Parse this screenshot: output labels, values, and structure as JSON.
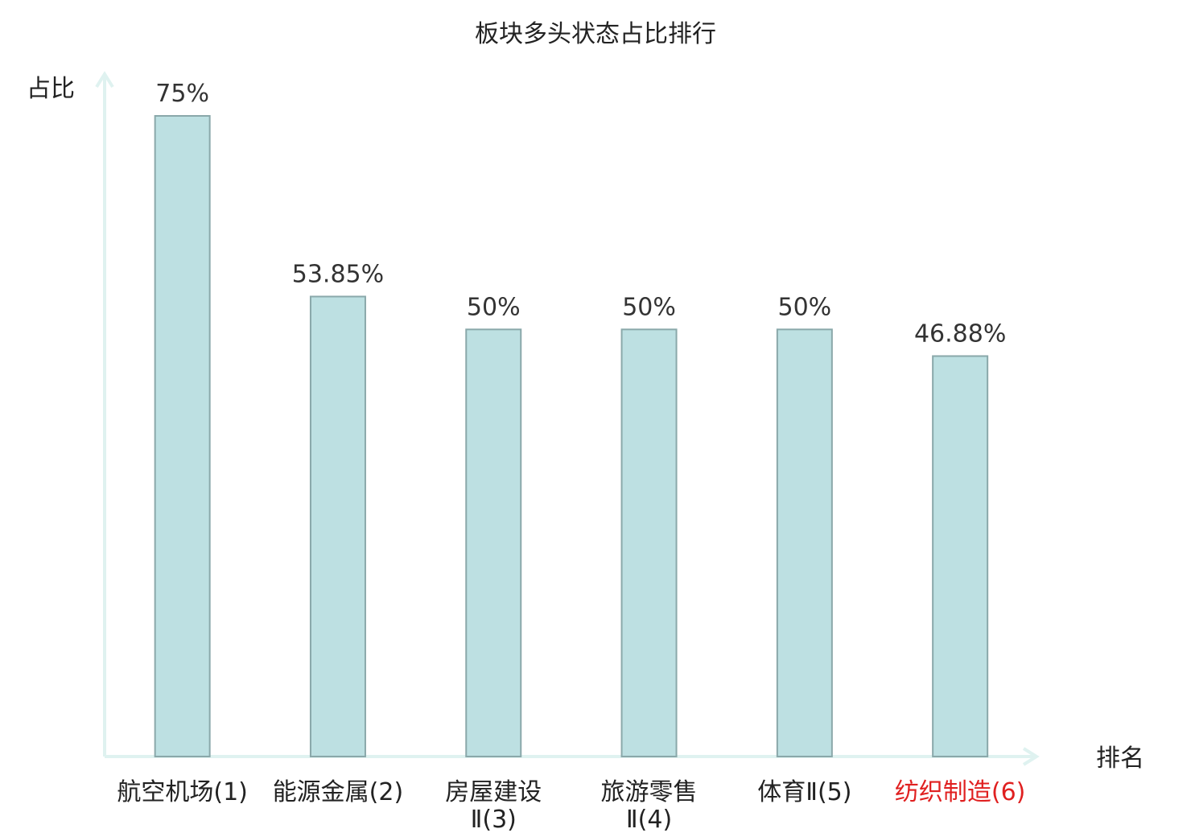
{
  "chart_data": {
    "type": "bar",
    "title": "板块多头状态占比排行",
    "xlabel": "排名",
    "ylabel": "占比",
    "categories": [
      {
        "label": "航空机场(1)",
        "lines": [
          "航空机场(1)"
        ],
        "color": "#222222"
      },
      {
        "label": "能源金属(2)",
        "lines": [
          "能源金属(2)"
        ],
        "color": "#222222"
      },
      {
        "label": "房屋建设Ⅱ(3)",
        "lines": [
          "房屋建设",
          "Ⅱ(3)"
        ],
        "color": "#222222"
      },
      {
        "label": "旅游零售Ⅱ(4)",
        "lines": [
          "旅游零售",
          "Ⅱ(4)"
        ],
        "color": "#222222"
      },
      {
        "label": "体育Ⅱ(5)",
        "lines": [
          "体育Ⅱ(5)"
        ],
        "color": "#222222"
      },
      {
        "label": "纺织制造(6)",
        "lines": [
          "纺织制造(6)"
        ],
        "color": "#e02020"
      }
    ],
    "values": [
      75,
      53.85,
      50,
      50,
      50,
      46.88
    ],
    "value_labels": [
      "75%",
      "53.85%",
      "50%",
      "50%",
      "50%",
      "46.88%"
    ],
    "ylim": [
      0,
      75
    ],
    "grid": false,
    "colors": {
      "bar_fill": "#bde0e2",
      "bar_stroke": "#8aa8aa",
      "axis": "#dff2f0",
      "highlight": "#e02020"
    }
  }
}
